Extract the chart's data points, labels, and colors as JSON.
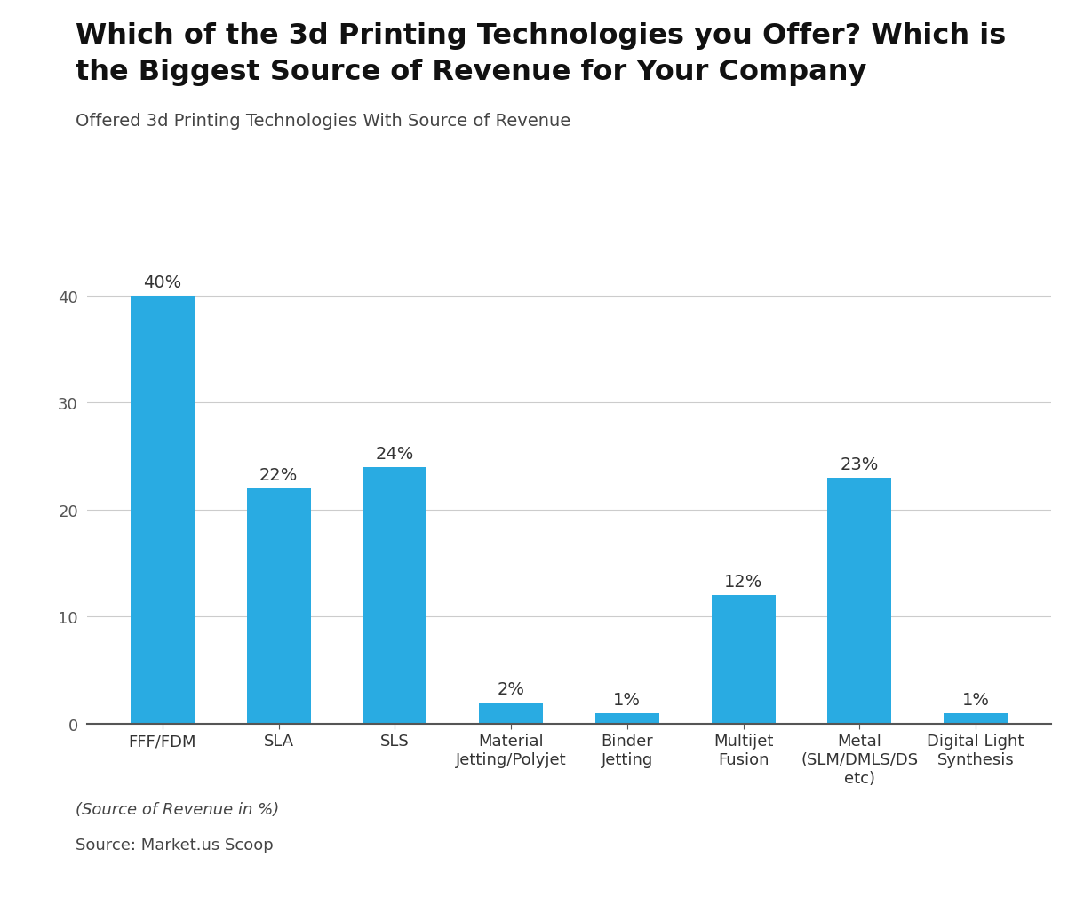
{
  "title_line1": "Which of the 3d Printing Technologies you Offer? Which is",
  "title_line2": "the Biggest Source of Revenue for Your Company",
  "subtitle": "Offered 3d Printing Technologies With Source of Revenue",
  "categories": [
    "FFF/FDM",
    "SLA",
    "SLS",
    "Material\nJetting/Polyjet",
    "Binder\nJetting",
    "Multijet\nFusion",
    "Metal\n(SLM/DMLS/DS\netc)",
    "Digital Light\nSynthesis"
  ],
  "values": [
    40,
    22,
    24,
    2,
    1,
    12,
    23,
    1
  ],
  "labels": [
    "40%",
    "22%",
    "24%",
    "2%",
    "1%",
    "12%",
    "23%",
    "1%"
  ],
  "bar_color": "#29ABE2",
  "background_color": "#FFFFFF",
  "ylim": [
    0,
    44
  ],
  "yticks": [
    0,
    10,
    20,
    30,
    40
  ],
  "footnote1": "(Source of Revenue in %)",
  "footnote2": "Source: Market.us Scoop",
  "title_fontsize": 23,
  "subtitle_fontsize": 14,
  "label_fontsize": 14,
  "tick_fontsize": 13,
  "footnote_fontsize": 13
}
